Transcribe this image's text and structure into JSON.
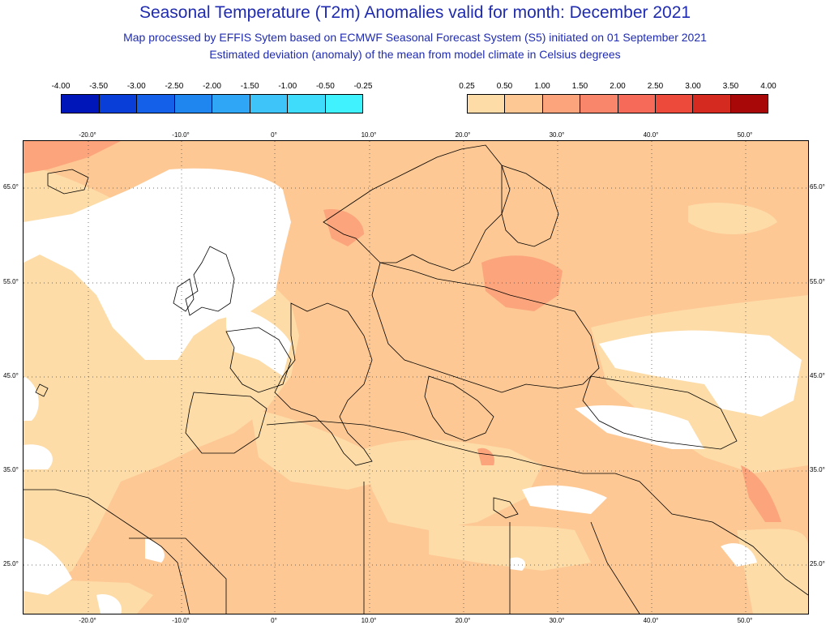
{
  "title": "Seasonal Temperature (T2m) Anomalies valid for month: December 2021",
  "subtitle_1": "Map processed by EFFIS Sytem based on ECMWF Seasonal Forecast System (S5) initiated on 01 September 2021",
  "subtitle_2": "Estimated deviation (anomaly) of the mean from model climate in Celsius degrees",
  "legend_negative": {
    "labels": [
      "-4.00",
      "-3.50",
      "-3.00",
      "-2.50",
      "-2.00",
      "-1.50",
      "-1.00",
      "-0.50",
      "-0.25"
    ],
    "colors": [
      "#0016b8",
      "#0a3ed8",
      "#1460e8",
      "#1f86f0",
      "#2fa6f6",
      "#3fc4fa",
      "#40dcfc",
      "#3ff2fe"
    ]
  },
  "legend_positive": {
    "labels": [
      "0.25",
      "0.50",
      "1.00",
      "1.50",
      "2.00",
      "2.50",
      "3.00",
      "3.50",
      "4.00"
    ],
    "colors": [
      "#fddca8",
      "#fdc894",
      "#fca57c",
      "#f9866a",
      "#f56a58",
      "#ee4a3c",
      "#d42a20",
      "#a90808"
    ]
  },
  "map": {
    "fill_colors": {
      "weak": "#fddca8",
      "base": "#fdc894",
      "warm": "#fca57c",
      "none": "#ffffff"
    },
    "lon_ticks": [
      "-20.0°",
      "-10.0°",
      "0°",
      "10.0°",
      "20.0°",
      "30.0°",
      "40.0°",
      "50.0°"
    ],
    "lat_ticks": [
      "65.0°",
      "55.0°",
      "45.0°",
      "35.0°",
      "25.0°"
    ]
  }
}
